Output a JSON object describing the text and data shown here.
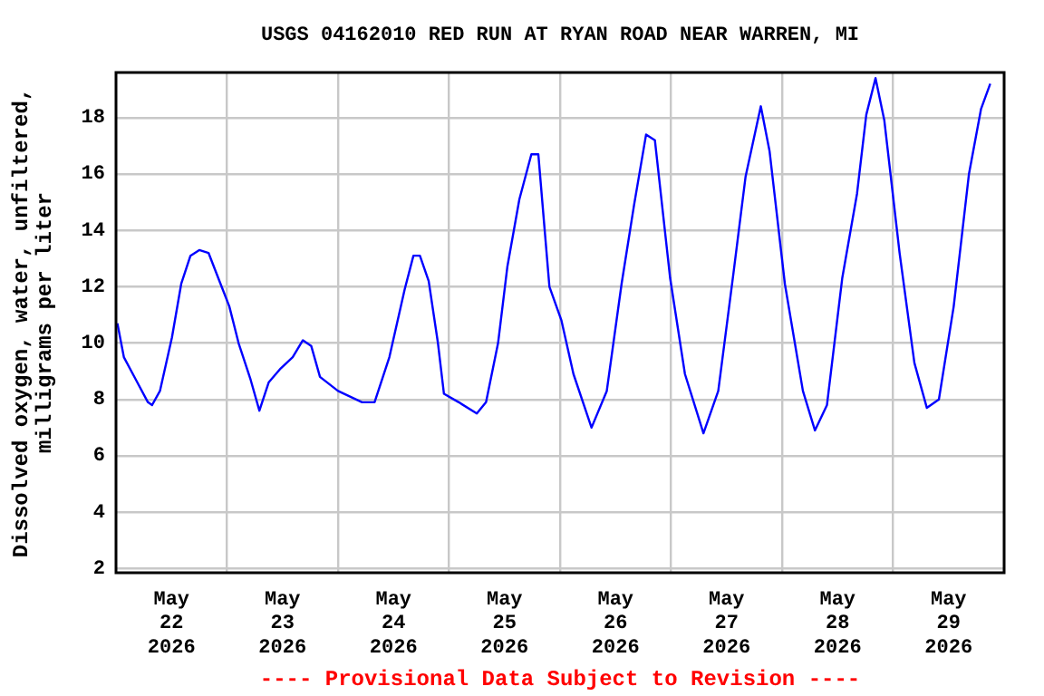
{
  "chart_data": {
    "type": "line",
    "title": "USGS 04162010 RED RUN AT RYAN ROAD NEAR WARREN, MI",
    "ylabel": "Dissolved oxygen, water, unfiltered,\nmilligrams per liter",
    "annotations": [
      "---- Provisional Data Subject to Revision ----"
    ],
    "x": [
      "2026-05-22T00:18",
      "2026-05-22T01:42",
      "2026-05-22T04:18",
      "2026-05-22T06:54",
      "2026-05-22T07:48",
      "2026-05-22T09:30",
      "2026-05-22T12:06",
      "2026-05-22T14:06",
      "2026-05-22T16:06",
      "2026-05-22T18:00",
      "2026-05-22T20:00",
      "2026-05-22T22:36",
      "2026-05-23T00:30",
      "2026-05-23T02:30",
      "2026-05-23T05:06",
      "2026-05-23T07:00",
      "2026-05-23T09:00",
      "2026-05-23T11:36",
      "2026-05-23T14:12",
      "2026-05-23T16:24",
      "2026-05-23T18:12",
      "2026-05-23T20:06",
      "2026-05-24T00:00",
      "2026-05-24T05:12",
      "2026-05-24T07:54",
      "2026-05-24T11:06",
      "2026-05-24T14:24",
      "2026-05-24T16:18",
      "2026-05-24T17:42",
      "2026-05-24T19:36",
      "2026-05-24T21:36",
      "2026-05-24T22:54",
      "2026-05-25T02:06",
      "2026-05-25T06:00",
      "2026-05-25T08:00",
      "2026-05-25T10:36",
      "2026-05-25T12:36",
      "2026-05-25T15:12",
      "2026-05-25T17:48",
      "2026-05-25T19:18",
      "2026-05-25T21:42",
      "2026-05-26T00:18",
      "2026-05-26T02:54",
      "2026-05-26T06:48",
      "2026-05-26T10:06",
      "2026-05-26T13:18",
      "2026-05-26T16:00",
      "2026-05-26T18:36",
      "2026-05-26T20:30",
      "2026-05-26T23:48",
      "2026-05-27T03:00",
      "2026-05-27T07:00",
      "2026-05-27T10:12",
      "2026-05-27T13:30",
      "2026-05-27T16:06",
      "2026-05-27T19:24",
      "2026-05-27T21:18",
      "2026-05-28T00:36",
      "2026-05-28T04:30",
      "2026-05-28T07:06",
      "2026-05-28T09:42",
      "2026-05-28T13:00",
      "2026-05-28T16:12",
      "2026-05-28T18:12",
      "2026-05-28T20:12",
      "2026-05-28T22:06",
      "2026-05-29T01:24",
      "2026-05-29T04:36",
      "2026-05-29T07:18",
      "2026-05-29T09:54",
      "2026-05-29T13:06",
      "2026-05-29T16:24",
      "2026-05-29T19:00",
      "2026-05-29T21:00"
    ],
    "series": [
      {
        "color": "#0000ff",
        "values": [
          10.7,
          9.5,
          8.7,
          7.9,
          7.8,
          8.3,
          10.2,
          12.1,
          13.1,
          13.3,
          13.2,
          12.1,
          11.3,
          10.0,
          8.7,
          7.6,
          8.6,
          9.1,
          9.5,
          10.1,
          9.9,
          8.8,
          8.3,
          7.9,
          7.9,
          9.5,
          11.9,
          13.1,
          13.1,
          12.2,
          10.0,
          8.2,
          7.9,
          7.5,
          7.9,
          10.0,
          12.7,
          15.1,
          16.7,
          16.7,
          12.0,
          10.8,
          8.9,
          7.0,
          8.3,
          12.1,
          14.9,
          17.4,
          17.2,
          12.3,
          8.9,
          6.8,
          8.3,
          12.5,
          15.9,
          18.4,
          16.8,
          12.1,
          8.3,
          6.9,
          7.8,
          12.3,
          15.3,
          18.1,
          19.4,
          17.9,
          13.2,
          9.3,
          7.7,
          8.0,
          11.3,
          16.0,
          18.3,
          19.2
        ]
      }
    ],
    "xlim": [
      "2026-05-22T00:00",
      "2026-05-30T00:00"
    ],
    "xticks": [
      {
        "value": "2026-05-22T12:00",
        "label": "May 22 2026"
      },
      {
        "value": "2026-05-23T00:00",
        "label": null
      },
      {
        "value": "2026-05-23T12:00",
        "label": "May 23 2026"
      },
      {
        "value": "2026-05-24T00:00",
        "label": null
      },
      {
        "value": "2026-05-24T12:00",
        "label": "May 24 2026"
      },
      {
        "value": "2026-05-25T00:00",
        "label": null
      },
      {
        "value": "2026-05-25T12:00",
        "label": "May 25 2026"
      },
      {
        "value": "2026-05-26T00:00",
        "label": null
      },
      {
        "value": "2026-05-26T12:00",
        "label": "May 26 2026"
      },
      {
        "value": "2026-05-27T00:00",
        "label": null
      },
      {
        "value": "2026-05-27T12:00",
        "label": "May 27 2026"
      },
      {
        "value": "2026-05-28T00:00",
        "label": null
      },
      {
        "value": "2026-05-28T12:00",
        "label": "May 28 2026"
      },
      {
        "value": "2026-05-29T00:00",
        "label": null
      },
      {
        "value": "2026-05-29T12:00",
        "label": "May 29 2026"
      }
    ],
    "ylim": [
      1.85,
      19.6
    ],
    "yticks": [
      2,
      4,
      6,
      8,
      10,
      12,
      14,
      16,
      18
    ],
    "grid": true,
    "legend": false,
    "marker": "none",
    "line_style": "solid"
  }
}
